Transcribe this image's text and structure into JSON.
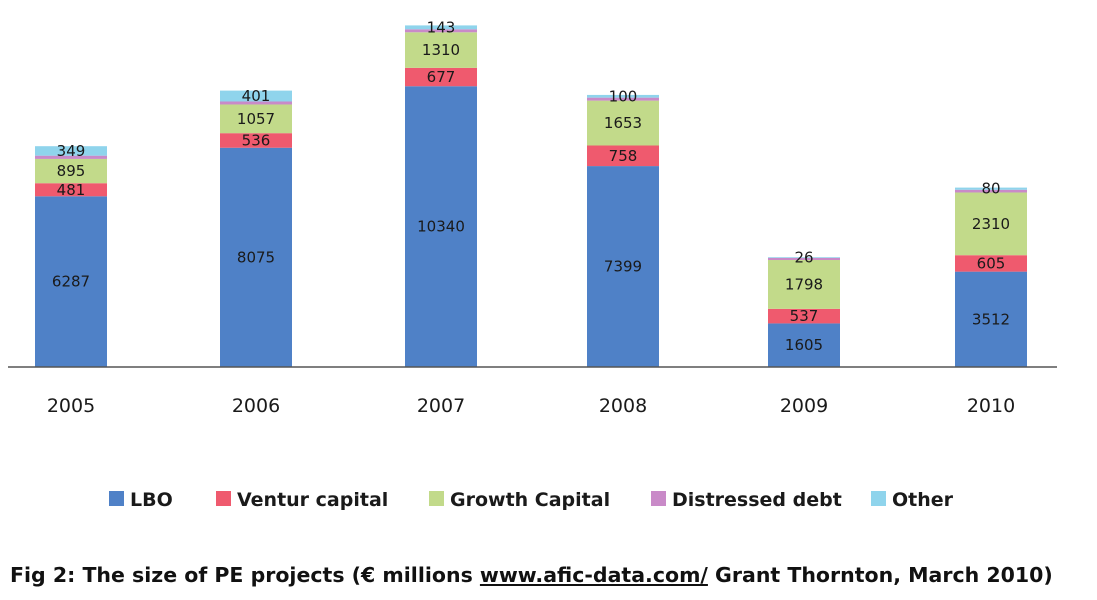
{
  "chart_data": {
    "type": "bar",
    "stacked": true,
    "categories": [
      "2005",
      "2006",
      "2007",
      "2008",
      "2009",
      "2010"
    ],
    "series": [
      {
        "name": "LBO",
        "color": "#4f81c7",
        "values": [
          6287,
          8075,
          10340,
          7399,
          1605,
          3512
        ]
      },
      {
        "name": "Ventur capital",
        "color": "#ef5a6e",
        "values": [
          481,
          536,
          677,
          758,
          537,
          605
        ]
      },
      {
        "name": "Growth Capital",
        "color": "#c2da8a",
        "values": [
          895,
          1057,
          1310,
          1653,
          1798,
          2310
        ]
      },
      {
        "name": "Distressed debt",
        "color": "#c98ac8",
        "values": [
          120,
          110,
          110,
          110,
          80,
          100
        ]
      },
      {
        "name": "Other",
        "color": "#8fd4ec",
        "values": [
          349,
          401,
          143,
          100,
          26,
          80
        ]
      }
    ],
    "data_labels": {
      "LBO": [
        "6287",
        "8075",
        "10340",
        "7399",
        "1605",
        "3512"
      ],
      "Ventur capital": [
        "481",
        "536",
        "677",
        "758",
        "537",
        "605"
      ],
      "Growth Capital": [
        "895",
        "1057",
        "1310",
        "1653",
        "1798",
        "2310"
      ],
      "Other": [
        "349",
        "401",
        "143",
        "100",
        "26",
        "80"
      ]
    },
    "ylim": [
      0,
      13000
    ],
    "grid": false,
    "legend_position": "bottom"
  },
  "caption": {
    "before": "Fig 2: The size of PE projects (€ millions ",
    "link": "www.afic-data.com/",
    "after": " Grant Thornton, March 2010)"
  }
}
